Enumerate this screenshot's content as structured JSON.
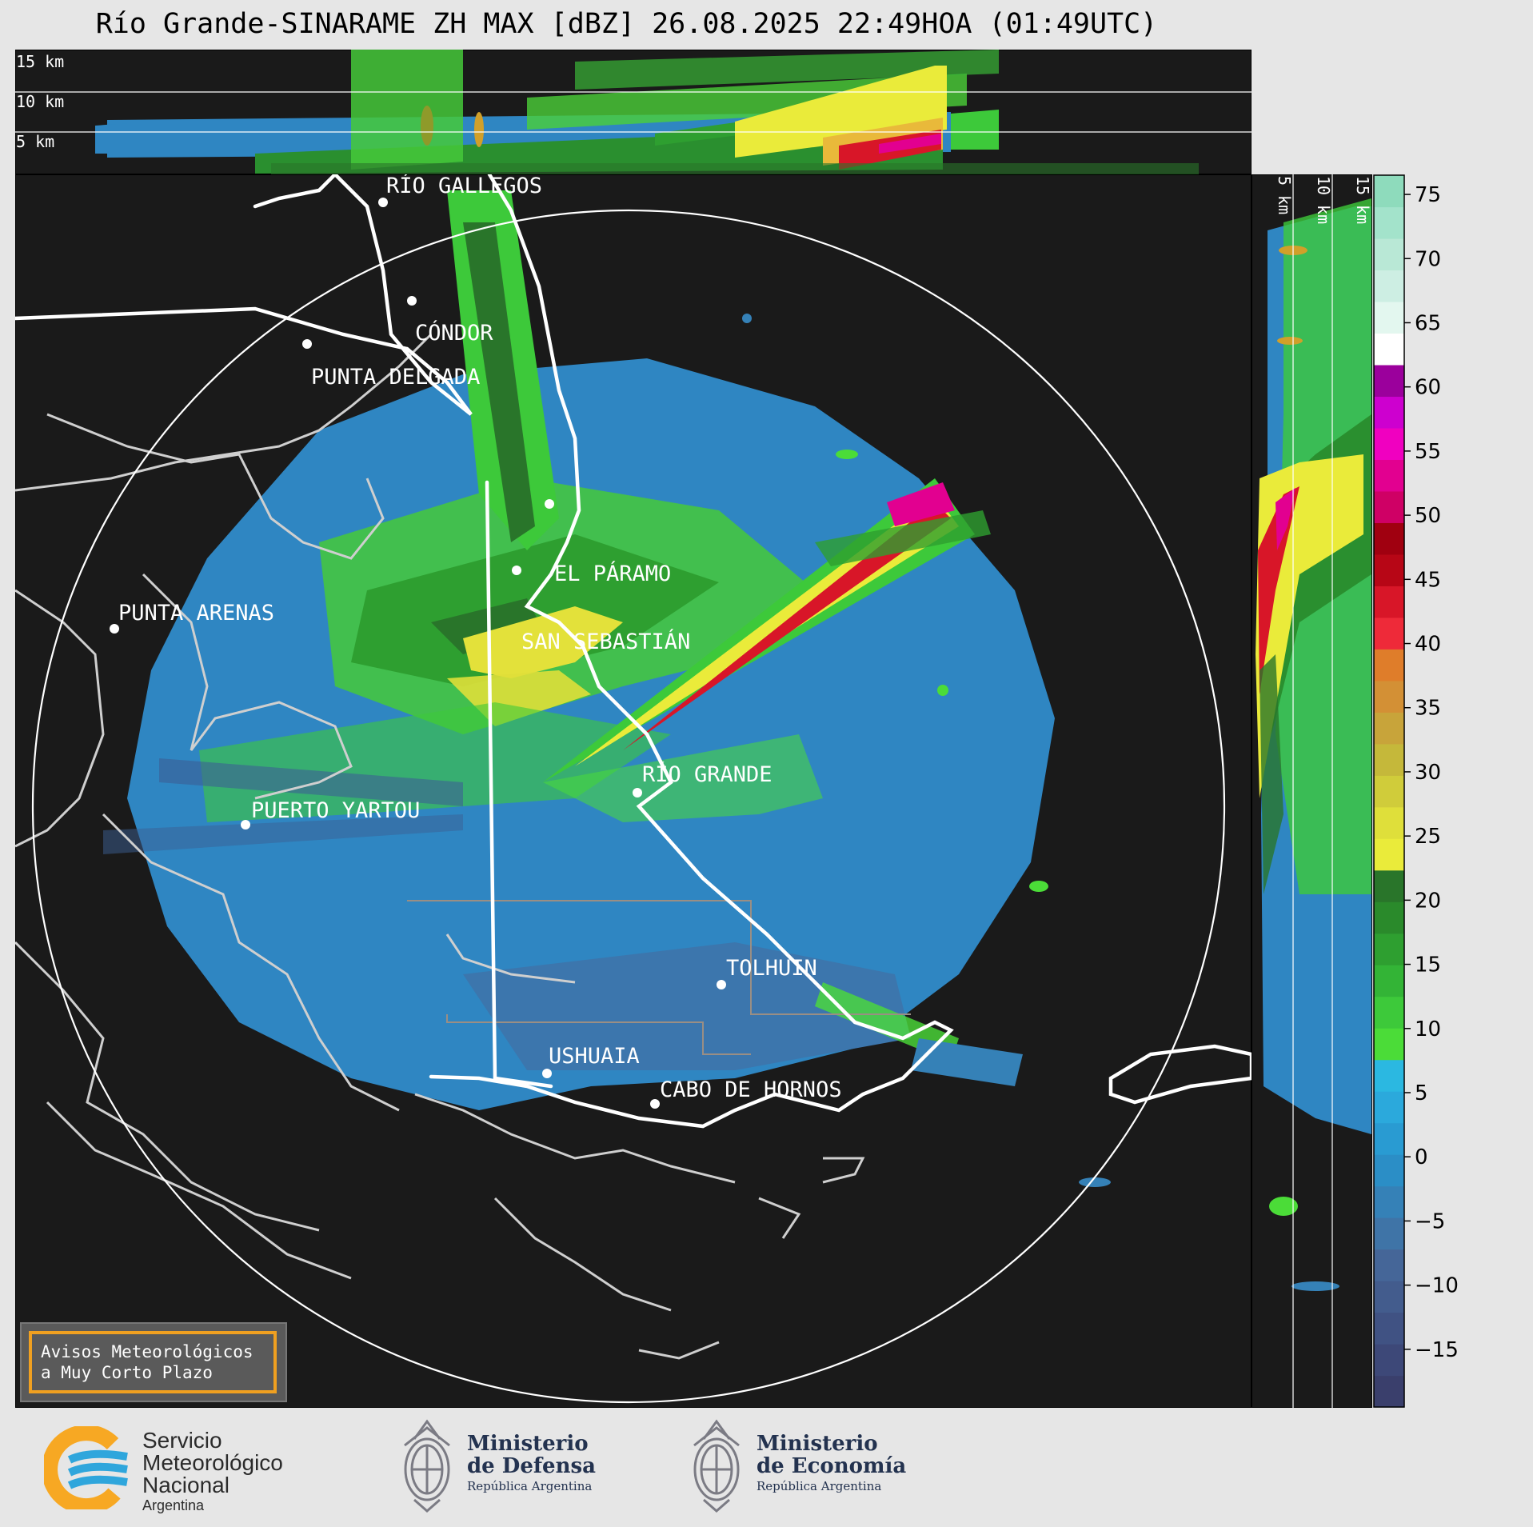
{
  "title": "Río Grande-SINARAME ZH MAX [dBZ] 26.08.2025 22:49HOA (01:49UTC)",
  "top_panel_labels": [
    "15 km",
    "10 km",
    "5 km"
  ],
  "side_panel_labels": [
    "5 km",
    "10 km",
    "15 km"
  ],
  "cities": [
    {
      "id": "rio-gallegos",
      "name": "RÍO GALLEGOS"
    },
    {
      "id": "condor",
      "name": "CÓNDOR"
    },
    {
      "id": "punta-delgada",
      "name": "PUNTA DELGADA"
    },
    {
      "id": "el-paramo",
      "name": "EL PÁRAMO"
    },
    {
      "id": "punta-arenas",
      "name": "PUNTA ARENAS"
    },
    {
      "id": "san-sebastian",
      "name": "SAN SEBASTIÁN"
    },
    {
      "id": "rio-grande",
      "name": "RÍO GRANDE"
    },
    {
      "id": "puerto-yartou",
      "name": "PUERTO YARTOU"
    },
    {
      "id": "tolhuin",
      "name": "TOLHUIN"
    },
    {
      "id": "ushuaia",
      "name": "USHUAIA"
    },
    {
      "id": "cabo-de-hornos",
      "name": "CABO DE HORNOS"
    }
  ],
  "notice": {
    "line1": "Avisos Meteorológicos",
    "line2": "a Muy Corto Plazo"
  },
  "colorbar": {
    "unit": "dBZ",
    "ticks": [
      "75",
      "70",
      "65",
      "60",
      "55",
      "50",
      "45",
      "40",
      "35",
      "30",
      "25",
      "20",
      "15",
      "10",
      "5",
      "0",
      "−5",
      "−10",
      "−15"
    ],
    "colors": [
      "#3a3f6c",
      "#3d4878",
      "#405283",
      "#435c8d",
      "#456698",
      "#3f74a7",
      "#3581b7",
      "#2b8ec6",
      "#299bd2",
      "#2ba9dc",
      "#2bb8e1",
      "#4bdc38",
      "#3dc93a",
      "#33b436",
      "#2e9f30",
      "#2a8a2b",
      "#29752a",
      "#eaeb3a",
      "#dfdf3a",
      "#d0cc3a",
      "#c5b83a",
      "#c8a43a",
      "#d39035",
      "#df7d2a",
      "#ee2a39",
      "#d81628",
      "#b70616",
      "#a00010",
      "#cf0065",
      "#e20090",
      "#f000c0",
      "#cd00cf",
      "#9b009c",
      "#ffffff",
      "#e3f7ef",
      "#cdeee3",
      "#b9e8d6",
      "#a3e3cb",
      "#8edbbc"
    ],
    "min": -19.5,
    "max": 76.5
  },
  "footer": {
    "smn": {
      "line1": "Servicio",
      "line2": "Meteorológico",
      "line3": "Nacional",
      "line4": "Argentina"
    },
    "defensa": {
      "line1": "Ministerio",
      "line2": "de Defensa",
      "line3": "República Argentina"
    },
    "economia": {
      "line1": "Ministerio",
      "line2": "de Economía",
      "line3": "República Argentina"
    }
  }
}
